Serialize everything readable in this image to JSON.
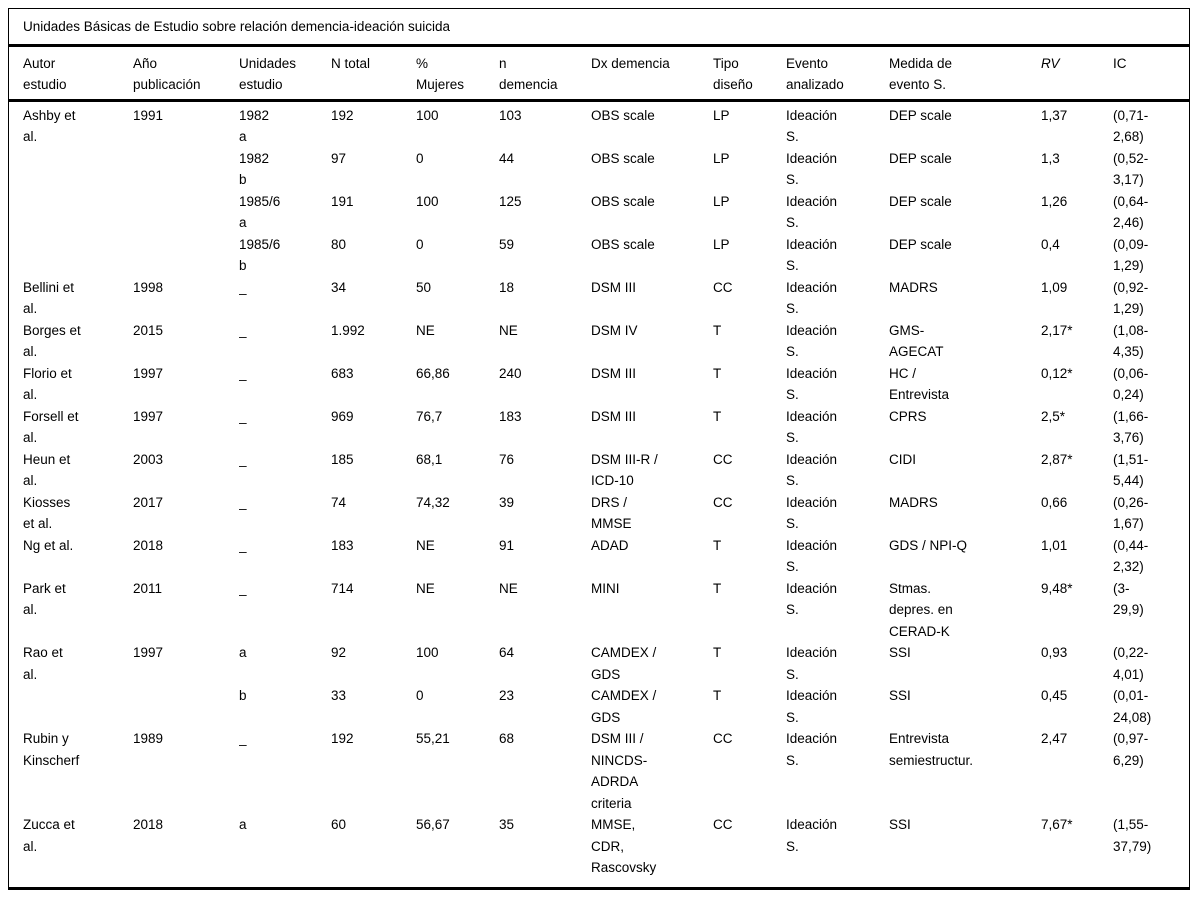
{
  "colors": {
    "background": "#ffffff",
    "text": "#000000",
    "rule": "#000000"
  },
  "table": {
    "caption": "Unidades Básicas de Estudio sobre relación demencia-ideación suicida",
    "columns": [
      {
        "key": "autor-estudio",
        "label": "Autor\nestudio",
        "italic": false
      },
      {
        "key": "ano-publicacion",
        "label": "Año\npublicación",
        "italic": false
      },
      {
        "key": "unidades-estudio",
        "label": "Unidades\nestudio",
        "italic": false
      },
      {
        "key": "n-total",
        "label": "N total",
        "italic": false
      },
      {
        "key": "pct-mujeres",
        "label": "%\nMujeres",
        "italic": false
      },
      {
        "key": "n-demencia",
        "label": "n\ndemencia",
        "italic": false
      },
      {
        "key": "dx-demencia",
        "label": "Dx demencia",
        "italic": false
      },
      {
        "key": "tipo-diseno",
        "label": "Tipo\ndiseño",
        "italic": false
      },
      {
        "key": "evento-analizado",
        "label": "Evento\nanalizado",
        "italic": false
      },
      {
        "key": "medida-evento",
        "label": "Medida de\nevento S.",
        "italic": false
      },
      {
        "key": "rv",
        "label": "RV",
        "italic": true
      },
      {
        "key": "ic",
        "label": "IC",
        "italic": false
      }
    ],
    "rows": [
      [
        "Ashby et\nal.",
        "1991",
        "1982\na",
        "192",
        "100",
        "103",
        "OBS scale",
        "LP",
        "Ideación\nS.",
        "DEP scale",
        "1,37",
        "(0,71-\n2,68)"
      ],
      [
        "",
        "",
        "1982\nb",
        "97",
        "0",
        "44",
        "OBS scale",
        "LP",
        "Ideación\nS.",
        "DEP scale",
        "1,3",
        "(0,52-\n3,17)"
      ],
      [
        "",
        "",
        "1985/6\na",
        "191",
        "100",
        "125",
        "OBS scale",
        "LP",
        "Ideación\nS.",
        "DEP scale",
        "1,26",
        "(0,64-\n2,46)"
      ],
      [
        "",
        "",
        "1985/6\nb",
        "80",
        "0",
        "59",
        "OBS scale",
        "LP",
        "Ideación\nS.",
        "DEP scale",
        "0,4",
        "(0,09-\n1,29)"
      ],
      [
        "Bellini et\nal.",
        "1998",
        "_",
        "34",
        "50",
        "18",
        "DSM III",
        "CC",
        "Ideación\nS.",
        "MADRS",
        "1,09",
        "(0,92-\n1,29)"
      ],
      [
        "Borges et\nal.",
        "2015",
        "_",
        "1.992",
        "NE",
        "NE",
        "DSM IV",
        "T",
        "Ideación\nS.",
        "GMS-\nAGECAT",
        "2,17*",
        "(1,08-\n4,35)"
      ],
      [
        "Florio et\nal.",
        "1997",
        "_",
        "683",
        "66,86",
        "240",
        "DSM III",
        "T",
        "Ideación\nS.",
        "HC /\nEntrevista",
        "0,12*",
        "(0,06-\n0,24)"
      ],
      [
        "Forsell et\nal.",
        "1997",
        "_",
        "969",
        "76,7",
        "183",
        "DSM III",
        "T",
        "Ideación\nS.",
        "CPRS",
        "2,5*",
        "(1,66-\n3,76)"
      ],
      [
        "Heun et\nal.",
        "2003",
        "_",
        "185",
        "68,1",
        "76",
        "DSM III-R /\nICD-10",
        "CC",
        "Ideación\nS.",
        "CIDI",
        "2,87*",
        "(1,51-\n5,44)"
      ],
      [
        "Kiosses\net al.",
        "2017",
        "_",
        "74",
        "74,32",
        "39",
        "DRS /\nMMSE",
        "CC",
        "Ideación\nS.",
        "MADRS",
        "0,66",
        "(0,26-\n1,67)"
      ],
      [
        "Ng et al.",
        "2018",
        "_",
        "183",
        "NE",
        "91",
        "ADAD",
        "T",
        "Ideación\nS.",
        "GDS / NPI-Q",
        "1,01",
        "(0,44-\n2,32)"
      ],
      [
        "Park et\nal.",
        "2011",
        "_",
        "714",
        "NE",
        "NE",
        "MINI",
        "T",
        "Ideación\nS.",
        "Stmas.\ndepres. en\nCERAD-K",
        "9,48*",
        "(3-\n29,9)"
      ],
      [
        "Rao et\nal.",
        "1997",
        "a",
        "92",
        "100",
        "64",
        "CAMDEX /\nGDS",
        "T",
        "Ideación\nS.",
        "SSI",
        "0,93",
        "(0,22-\n4,01)"
      ],
      [
        "",
        "",
        "b",
        "33",
        "0",
        "23",
        "CAMDEX /\nGDS",
        "T",
        "Ideación\nS.",
        "SSI",
        "0,45",
        "(0,01-\n24,08)"
      ],
      [
        "Rubin y\nKinscherf",
        "1989",
        "_",
        "192",
        "55,21",
        "68",
        "DSM III /\nNINCDS-\nADRDA\ncriteria",
        "CC",
        "Ideación\nS.",
        "Entrevista\nsemiestructur.",
        "2,47",
        "(0,97-\n6,29)"
      ],
      [
        "Zucca et\nal.",
        "2018",
        "a",
        "60",
        "56,67",
        "35",
        "MMSE,\nCDR,\nRascovsky",
        "CC",
        "Ideación\nS.",
        "SSI",
        "7,67*",
        "(1,55-\n37,79)"
      ]
    ]
  }
}
